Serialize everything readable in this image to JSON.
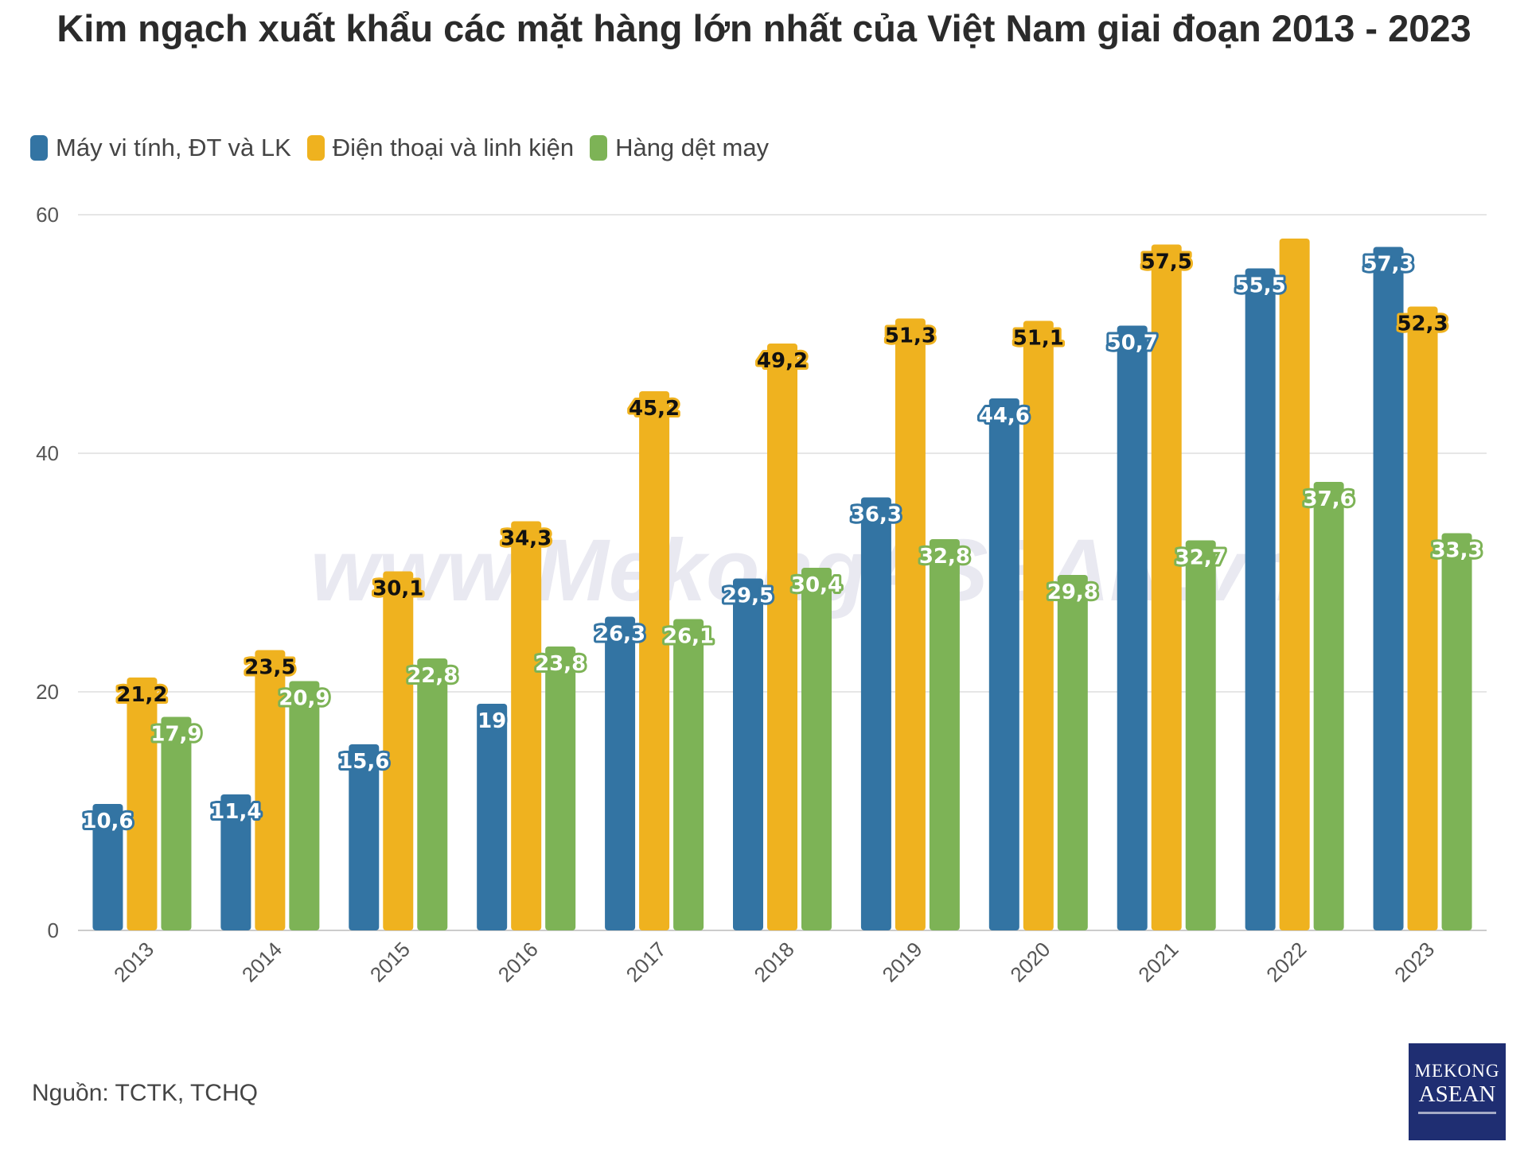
{
  "chart_data": {
    "type": "bar",
    "title": "Kim ngạch xuất khẩu các mặt hàng lớn nhất của Việt Nam giai đoạn 2013 - 2023",
    "xlabel": "",
    "ylabel": "",
    "ylim": [
      0,
      60
    ],
    "yticks": [
      0,
      20,
      40,
      60
    ],
    "grid": true,
    "legend_position": "top-left",
    "categories": [
      "2013",
      "2014",
      "2015",
      "2016",
      "2017",
      "2018",
      "2019",
      "2020",
      "2021",
      "2022",
      "2023"
    ],
    "series": [
      {
        "name": "Máy vi tính, ĐT và LK",
        "color": "#3374a3",
        "values": [
          10.6,
          11.4,
          15.6,
          19,
          26.3,
          29.5,
          36.3,
          44.6,
          50.7,
          55.5,
          57.3
        ],
        "labels": [
          "10,6",
          "11,4",
          "15,6",
          "19",
          "26,3",
          "29,5",
          "36,3",
          "44,6",
          "50,7",
          "55,5",
          "57,3"
        ]
      },
      {
        "name": "Điện thoại và linh kiện",
        "color": "#efb21f",
        "values": [
          21.2,
          23.5,
          30.1,
          34.3,
          45.2,
          49.2,
          51.3,
          51.1,
          57.5,
          58,
          52.3
        ],
        "labels": [
          "21,2",
          "23,5",
          "30,1",
          "34,3",
          "45,2",
          "49,2",
          "51,3",
          "51,1",
          "57,5",
          "",
          "52,3"
        ]
      },
      {
        "name": "Hàng dệt may",
        "color": "#7db356",
        "values": [
          17.9,
          20.9,
          22.8,
          23.8,
          26.1,
          30.4,
          32.8,
          29.8,
          32.7,
          37.6,
          33.3
        ],
        "labels": [
          "17,9",
          "20,9",
          "22,8",
          "23,8",
          "26,1",
          "30,4",
          "32,8",
          "29,8",
          "32,7",
          "37,6",
          "33,3"
        ]
      }
    ],
    "watermark": "www.MekongASEAN.vn",
    "source": "Nguồn: TCTK, TCHQ"
  },
  "logo": {
    "line1": "MEKONG",
    "line2": "ASEAN"
  }
}
